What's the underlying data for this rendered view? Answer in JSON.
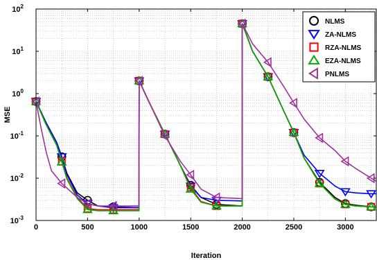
{
  "chart_data": {
    "type": "line",
    "title": "",
    "xlabel": "Iteration",
    "ylabel": "MSE",
    "xlim": [
      0,
      3300
    ],
    "ylim": [
      0.001,
      100
    ],
    "yscale": "log",
    "grid": true,
    "legend_position": "top-right",
    "x_ticks": [
      0,
      500,
      1000,
      1500,
      2000,
      2500,
      3000
    ],
    "x_tick_labels": [
      "0",
      "500",
      "1000",
      "1500",
      "2000",
      "2500",
      "3000"
    ],
    "y_tick_exponents": [
      -3,
      -2,
      -1,
      0,
      1,
      2
    ],
    "y_tick_base": "10",
    "series": [
      {
        "name": "NLMS",
        "color": "#000000",
        "marker": "circle",
        "marker_x": [
          0,
          250,
          500,
          750,
          1000,
          1250,
          1500,
          1750,
          2000,
          2250,
          2500,
          2750,
          3000,
          3250
        ],
        "x": [
          0,
          100,
          200,
          250,
          300,
          400,
          500,
          600,
          750,
          999,
          1000,
          1100,
          1250,
          1400,
          1500,
          1600,
          1750,
          1999,
          2000,
          2100,
          2250,
          2400,
          2500,
          2600,
          2750,
          2900,
          3000,
          3100,
          3250,
          3300
        ],
        "y": [
          0.65,
          0.2,
          0.07,
          0.032,
          0.013,
          0.0045,
          0.003,
          0.0022,
          0.0021,
          0.002,
          2.0,
          0.6,
          0.11,
          0.02,
          0.0068,
          0.0035,
          0.0024,
          0.0022,
          45,
          10,
          2.5,
          0.4,
          0.12,
          0.03,
          0.008,
          0.0035,
          0.0025,
          0.0023,
          0.0021,
          0.0021
        ]
      },
      {
        "name": "ZA-NLMS",
        "color": "#0000ff",
        "marker": "triangle-down",
        "marker_x": [
          0,
          250,
          500,
          750,
          1000,
          1250,
          1500,
          1750,
          2000,
          2250,
          2500,
          2750,
          3000,
          3250
        ],
        "x": [
          0,
          100,
          200,
          250,
          300,
          400,
          500,
          600,
          750,
          999,
          1000,
          1100,
          1250,
          1400,
          1500,
          1600,
          1750,
          1999,
          2000,
          2100,
          2250,
          2400,
          2500,
          2600,
          2750,
          2900,
          3000,
          3100,
          3250,
          3300
        ],
        "y": [
          0.65,
          0.2,
          0.07,
          0.032,
          0.012,
          0.004,
          0.0025,
          0.0022,
          0.002,
          0.002,
          2.0,
          0.6,
          0.11,
          0.02,
          0.0065,
          0.0035,
          0.003,
          0.0029,
          45,
          10,
          2.5,
          0.4,
          0.12,
          0.035,
          0.013,
          0.0065,
          0.0048,
          0.0045,
          0.0043,
          0.0043
        ]
      },
      {
        "name": "RZA-NLMS",
        "color": "#ff0000",
        "marker": "square",
        "marker_x": [
          0,
          250,
          500,
          750,
          1000,
          1250,
          1500,
          1750,
          2000,
          2250,
          2500,
          2750,
          3000,
          3250
        ],
        "x": [
          0,
          100,
          200,
          250,
          300,
          400,
          500,
          600,
          750,
          999,
          1000,
          1100,
          1250,
          1400,
          1500,
          1600,
          1750,
          1999,
          2000,
          2100,
          2250,
          2400,
          2500,
          2600,
          2750,
          2900,
          3000,
          3100,
          3250,
          3300
        ],
        "y": [
          0.65,
          0.18,
          0.06,
          0.025,
          0.01,
          0.0035,
          0.0019,
          0.0018,
          0.0018,
          0.0018,
          2.0,
          0.6,
          0.11,
          0.02,
          0.006,
          0.0028,
          0.0022,
          0.0022,
          45,
          10,
          2.5,
          0.4,
          0.12,
          0.03,
          0.0075,
          0.0032,
          0.0024,
          0.0022,
          0.0021,
          0.0021
        ]
      },
      {
        "name": "EZA-NLMS",
        "color": "#00aa00",
        "marker": "triangle-up",
        "marker_x": [
          0,
          250,
          500,
          750,
          1000,
          1250,
          1500,
          1750,
          2000,
          2250,
          2500,
          2750,
          3000,
          3250
        ],
        "x": [
          0,
          100,
          200,
          250,
          300,
          400,
          500,
          600,
          750,
          999,
          1000,
          1100,
          1250,
          1400,
          1500,
          1600,
          1750,
          1999,
          2000,
          2100,
          2250,
          2400,
          2500,
          2600,
          2750,
          2900,
          3000,
          3100,
          3250,
          3300
        ],
        "y": [
          0.65,
          0.18,
          0.06,
          0.024,
          0.0095,
          0.0033,
          0.0018,
          0.0017,
          0.0017,
          0.0017,
          2.0,
          0.6,
          0.11,
          0.02,
          0.0055,
          0.0027,
          0.0022,
          0.0022,
          45,
          10,
          2.5,
          0.4,
          0.12,
          0.03,
          0.0075,
          0.0032,
          0.0024,
          0.0022,
          0.0021,
          0.0021
        ]
      },
      {
        "name": "PNLMS",
        "color": "#a030a0",
        "marker": "triangle-left",
        "marker_x": [
          0,
          250,
          500,
          750,
          1000,
          1250,
          1500,
          1750,
          2000,
          2250,
          2500,
          2750,
          3000,
          3250
        ],
        "x": [
          0,
          50,
          100,
          150,
          250,
          400,
          500,
          600,
          750,
          999,
          1000,
          1100,
          1250,
          1400,
          1500,
          1600,
          1750,
          1999,
          2000,
          2100,
          2250,
          2400,
          2500,
          2600,
          2750,
          2900,
          3000,
          3100,
          3250,
          3300
        ],
        "y": [
          0.65,
          0.15,
          0.04,
          0.015,
          0.0075,
          0.0035,
          0.0025,
          0.0022,
          0.0022,
          0.0022,
          2.0,
          0.6,
          0.1,
          0.025,
          0.012,
          0.0055,
          0.0035,
          0.0033,
          45,
          15,
          5.5,
          1.5,
          0.6,
          0.25,
          0.09,
          0.045,
          0.025,
          0.017,
          0.01,
          0.0085
        ]
      }
    ]
  }
}
